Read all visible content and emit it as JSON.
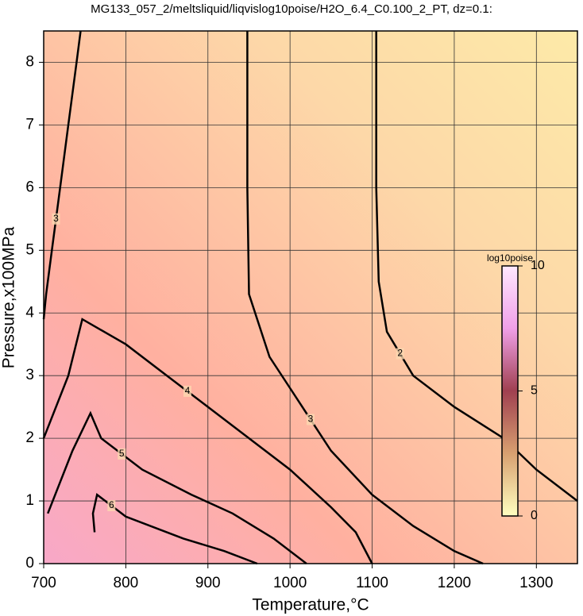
{
  "chart_data": {
    "type": "contour",
    "title": "MG133_057_2/meltsliquid/liqvislog10poise/H2O_6.4_C0.100_2_PT, dz=0.1:",
    "x_label": "Temperature,°C",
    "y_label": "Pressure,x100MPa",
    "xlim": [
      700,
      1350
    ],
    "ylim": [
      0,
      8.5
    ],
    "xticks": [
      700,
      800,
      900,
      1000,
      1100,
      1200,
      1300
    ],
    "yticks": [
      0,
      1,
      2,
      3,
      4,
      5,
      6,
      7,
      8
    ],
    "grid": true,
    "colorbar": {
      "label": "log10poise",
      "zlim": [
        0,
        10
      ],
      "ticks": [
        0,
        5,
        10
      ],
      "colors": [
        "#ffffc0",
        "#d8a070",
        "#a04050",
        "#f0a0e8",
        "#ffe8ff"
      ]
    },
    "series": [
      {
        "name": "2",
        "color": "#000000",
        "x": [
          1105,
          1105,
          1108,
          1118,
          1150,
          1200,
          1260,
          1300,
          1350
        ],
        "y": [
          8.5,
          6.0,
          4.5,
          3.7,
          3.0,
          2.5,
          2.0,
          1.5,
          1.0
        ]
      },
      {
        "name": "3",
        "color": "#000000",
        "x": [
          948,
          948,
          950,
          975,
          1000,
          1050,
          1100,
          1150,
          1200,
          1235
        ],
        "y": [
          8.5,
          6.0,
          4.3,
          3.3,
          2.8,
          1.8,
          1.1,
          0.6,
          0.2,
          0
        ]
      },
      {
        "name": "3",
        "color": "#000000",
        "x": [
          700,
          703,
          710,
          720,
          730,
          740,
          745
        ],
        "y": [
          3.9,
          4.3,
          5.0,
          6.0,
          7.0,
          8.0,
          8.5
        ]
      },
      {
        "name": "4",
        "color": "#000000",
        "x": [
          700,
          730,
          747,
          800,
          850,
          900,
          950,
          1000,
          1050,
          1080,
          1100
        ],
        "y": [
          2.0,
          3.0,
          3.9,
          3.5,
          3.0,
          2.5,
          2.0,
          1.5,
          0.9,
          0.5,
          0
        ]
      },
      {
        "name": "5",
        "color": "#000000",
        "x": [
          705,
          735,
          757,
          770,
          820,
          880,
          930,
          980,
          1020
        ],
        "y": [
          0.8,
          1.8,
          2.4,
          2.0,
          1.5,
          1.1,
          0.8,
          0.4,
          0
        ]
      },
      {
        "name": "6",
        "color": "#000000",
        "x": [
          762,
          760,
          765,
          800,
          870,
          920,
          960
        ],
        "y": [
          0.5,
          0.8,
          1.1,
          0.75,
          0.4,
          0.2,
          0
        ]
      }
    ]
  }
}
